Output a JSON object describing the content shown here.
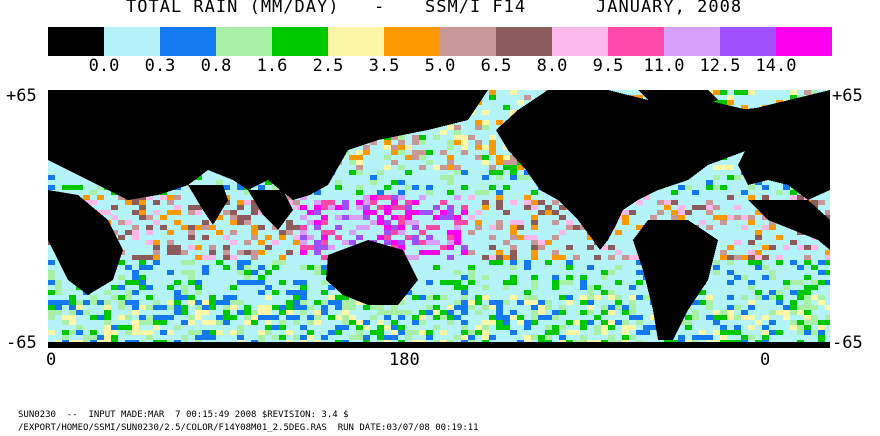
{
  "title": {
    "product": "TOTAL RAIN (MM/DAY)",
    "dash": "-",
    "instrument": "SSM/I F14",
    "period": "JANUARY, 2008"
  },
  "legend": {
    "colors": [
      "#000000",
      "#b4f4f8",
      "#1478f0",
      "#a8f0a8",
      "#00c800",
      "#fcf8a8",
      "#fc9800",
      "#c89898",
      "#8c5c5c",
      "#fcb8e8",
      "#fc48a8",
      "#d8a0f8",
      "#a050f8",
      "#fc00f0"
    ],
    "labels": [
      "0.0",
      "0.3",
      "0.8",
      "1.6",
      "2.5",
      "3.5",
      "5.0",
      "6.5",
      "8.0",
      "9.5",
      "11.0",
      "12.5",
      "14.0"
    ]
  },
  "axes": {
    "lat_top_left": "+65",
    "lat_top_right": "+65",
    "lat_bottom_left": "-65",
    "lat_bottom_right": "-65",
    "lon_left": "0",
    "lon_mid": "180",
    "lon_right": "0"
  },
  "footer": {
    "line1": "SUN0230  --  INPUT MADE:MAR  7 00:15:49 2008 $REVISION: 3.4 $",
    "line2": "/EXPORT/HOMEO/SSMI/SUN0230/2.5/COLOR/F14Y08M01_2.5DEG.RAS  RUN DATE:03/07/08 00:19:11"
  }
}
